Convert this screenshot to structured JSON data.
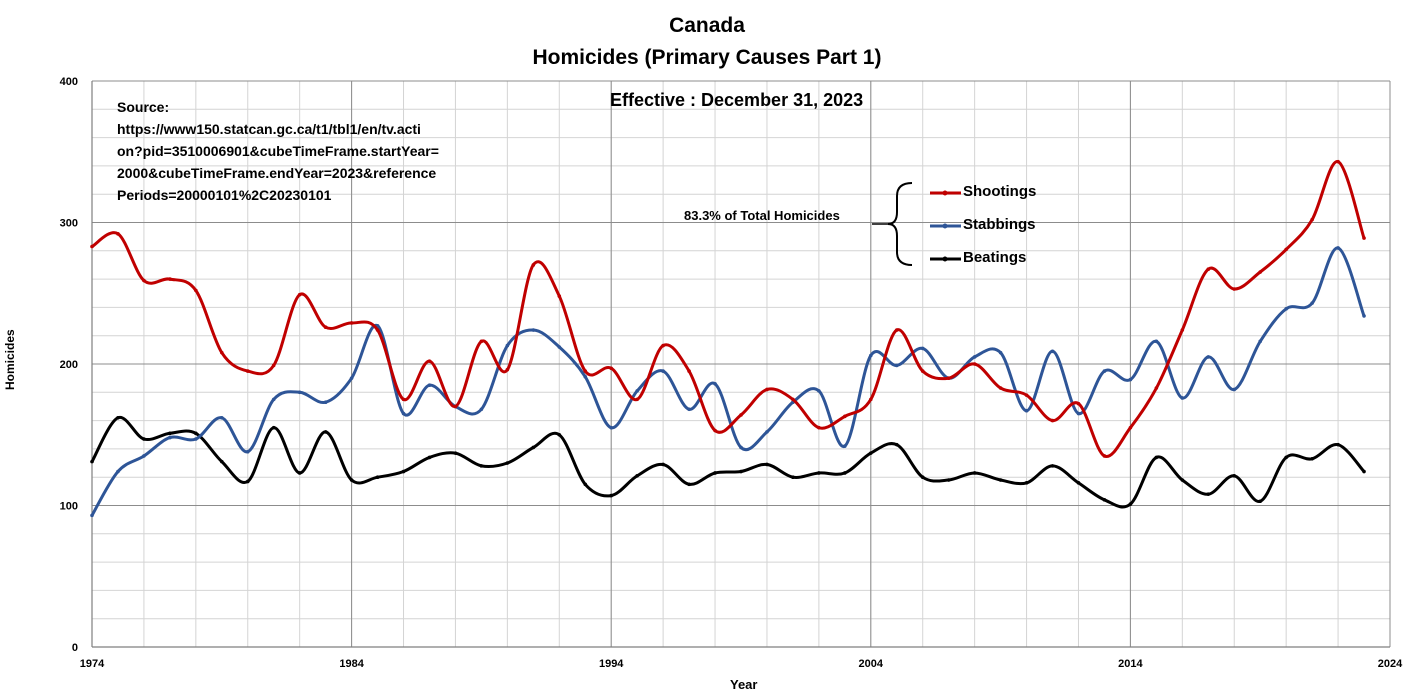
{
  "chart_data": {
    "type": "line",
    "title": "Canada",
    "subtitle": "Homicides (Primary Causes Part 1)",
    "effective_note": "Effective : December 31, 2023",
    "source_note": "Source:\nhttps://www150.statcan.gc.ca/t1/tbl1/en/tv.acti\non?pid=3510006901&cubeTimeFrame.startYear=\n2000&cubeTimeFrame.endYear=2023&reference\nPeriods=20000101%2C20230101",
    "bracket_note": "83.3% of Total Homicides",
    "xlabel": "Year",
    "ylabel": "Homicides",
    "xlim": [
      1974,
      2024
    ],
    "ylim": [
      0,
      400
    ],
    "x_ticks": [
      1974,
      1984,
      1994,
      2004,
      2014,
      2024
    ],
    "y_ticks": [
      0,
      100,
      200,
      300,
      400
    ],
    "grid": true,
    "legend_position": "top-right",
    "x": [
      1974,
      1975,
      1976,
      1977,
      1978,
      1979,
      1980,
      1981,
      1982,
      1983,
      1984,
      1985,
      1986,
      1987,
      1988,
      1989,
      1990,
      1991,
      1992,
      1993,
      1994,
      1995,
      1996,
      1997,
      1998,
      1999,
      2000,
      2001,
      2002,
      2003,
      2004,
      2005,
      2006,
      2007,
      2008,
      2009,
      2010,
      2011,
      2012,
      2013,
      2014,
      2015,
      2016,
      2017,
      2018,
      2019,
      2020,
      2021,
      2022,
      2023
    ],
    "series": [
      {
        "name": "Shootings",
        "color": "#c00000",
        "values": [
          283,
          292,
          259,
          260,
          252,
          208,
          195,
          199,
          249,
          226,
          229,
          224,
          175,
          202,
          170,
          216,
          196,
          270,
          248,
          195,
          197,
          175,
          213,
          195,
          153,
          164,
          182,
          175,
          155,
          163,
          175,
          224,
          195,
          190,
          200,
          183,
          178,
          160,
          172,
          135,
          155,
          183,
          224,
          267,
          253,
          265,
          281,
          302,
          343,
          289
        ]
      },
      {
        "name": "Stabbings",
        "color": "#2e5597",
        "values": [
          93,
          124,
          135,
          148,
          147,
          162,
          138,
          175,
          180,
          173,
          190,
          227,
          165,
          185,
          170,
          168,
          213,
          224,
          212,
          191,
          155,
          181,
          195,
          168,
          186,
          141,
          152,
          173,
          181,
          142,
          206,
          199,
          211,
          190,
          205,
          208,
          167,
          209,
          165,
          195,
          189,
          216,
          176,
          205,
          182,
          216,
          239,
          243,
          282,
          234
        ]
      },
      {
        "name": "Beatings",
        "color": "#000000",
        "values": [
          131,
          162,
          147,
          151,
          151,
          131,
          117,
          155,
          123,
          152,
          118,
          120,
          124,
          134,
          137,
          128,
          130,
          141,
          150,
          115,
          107,
          121,
          129,
          115,
          123,
          124,
          129,
          120,
          123,
          123,
          137,
          143,
          120,
          118,
          123,
          118,
          116,
          128,
          116,
          104,
          101,
          134,
          118,
          108,
          121,
          103,
          134,
          133,
          143,
          124
        ]
      }
    ]
  }
}
